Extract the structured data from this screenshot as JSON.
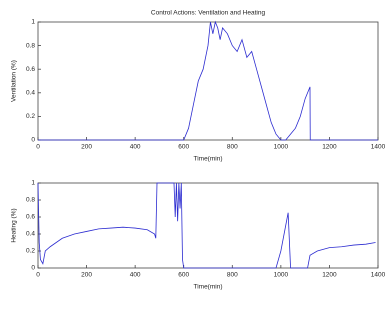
{
  "chart_data": [
    {
      "type": "line",
      "title": "Control Actions: Ventilation and Heating",
      "xlabel": "Time(min)",
      "ylabel": "Ventilation (%)",
      "x": [
        0,
        100,
        200,
        300,
        400,
        500,
        600,
        620,
        640,
        660,
        680,
        700,
        710,
        720,
        730,
        740,
        750,
        760,
        780,
        800,
        820,
        840,
        860,
        880,
        900,
        920,
        940,
        960,
        980,
        1000,
        1020,
        1040,
        1060,
        1080,
        1100,
        1120,
        1121,
        1200,
        1300,
        1400
      ],
      "series": [
        {
          "color": "#2b2bd0",
          "values": [
            0,
            0,
            0,
            0,
            0,
            0,
            0,
            0.1,
            0.3,
            0.5,
            0.6,
            0.8,
            1,
            0.9,
            1,
            0.95,
            0.85,
            0.95,
            0.9,
            0.8,
            0.75,
            0.85,
            0.7,
            0.75,
            0.6,
            0.45,
            0.3,
            0.15,
            0.05,
            0,
            0,
            0.05,
            0.1,
            0.2,
            0.35,
            0.45,
            0,
            0,
            0,
            0
          ]
        }
      ],
      "xlim": [
        0,
        1400
      ],
      "xticks": [
        0,
        200,
        400,
        600,
        800,
        1000,
        1200,
        1400
      ],
      "ylim": [
        0,
        1
      ],
      "yticks": [
        0,
        0.2,
        0.4,
        0.6,
        0.8,
        1
      ],
      "grid": false
    },
    {
      "type": "line",
      "xlabel": "Time(min)",
      "ylabel": "Heating (%)",
      "x": [
        0,
        5,
        10,
        20,
        30,
        50,
        100,
        150,
        200,
        250,
        300,
        350,
        400,
        450,
        480,
        485,
        490,
        560,
        565,
        570,
        575,
        580,
        585,
        590,
        595,
        600,
        700,
        800,
        900,
        980,
        1000,
        1020,
        1030,
        1040,
        1100,
        1110,
        1120,
        1150,
        1200,
        1250,
        1300,
        1350,
        1390
      ],
      "series": [
        {
          "color": "#2b2bd0",
          "values": [
            1,
            0.3,
            0.1,
            0.05,
            0.2,
            0.25,
            0.35,
            0.4,
            0.43,
            0.46,
            0.47,
            0.48,
            0.47,
            0.45,
            0.4,
            0.35,
            1,
            1,
            0.6,
            1,
            0.55,
            1,
            0.7,
            1,
            0.1,
            0,
            0,
            0,
            0,
            0,
            0.2,
            0.5,
            0.65,
            0,
            0,
            0,
            0.15,
            0.2,
            0.24,
            0.25,
            0.27,
            0.28,
            0.3
          ]
        }
      ],
      "xlim": [
        0,
        1400
      ],
      "xticks": [
        0,
        200,
        400,
        600,
        800,
        1000,
        1200,
        1400
      ],
      "ylim": [
        0,
        1
      ],
      "yticks": [
        0,
        0.2,
        0.4,
        0.6,
        0.8,
        1
      ],
      "grid": false
    }
  ]
}
